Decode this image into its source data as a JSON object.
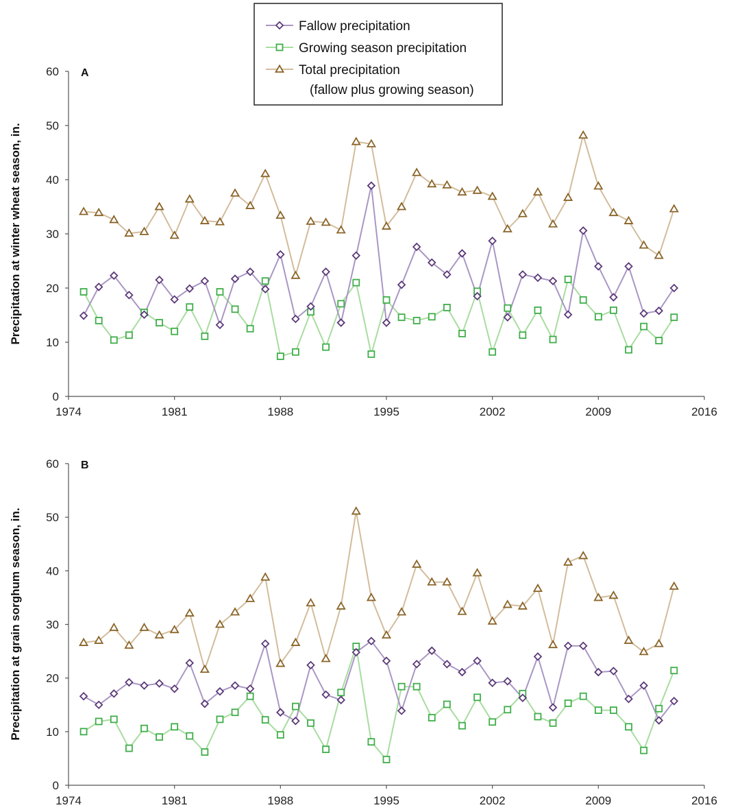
{
  "legend": {
    "entries": [
      {
        "label": "Fallow precipitation",
        "marker": "diamond",
        "line_color": "#a996c4",
        "marker_color": "#5b3978"
      },
      {
        "label": "Growing season precipitation",
        "marker": "square",
        "line_color": "#a8dca0",
        "marker_color": "#3fae49"
      },
      {
        "label": "Total precipitation",
        "marker": "triangle",
        "line_color": "#d2bc9c",
        "marker_color": "#8a6428"
      }
    ],
    "total_note": "(fallow plus growing season)"
  },
  "chart_data": [
    {
      "type": "line",
      "panel_label": "A",
      "ylabel": "Precipitation at winter wheat season, in.",
      "xlabel": "",
      "xlim": [
        1974,
        2016
      ],
      "ylim": [
        0,
        60
      ],
      "x_ticks": [
        "1974",
        "1981",
        "1988",
        "1995",
        "2002",
        "2009",
        "2016"
      ],
      "y_ticks": [
        "0",
        "10",
        "20",
        "30",
        "40",
        "50",
        "60"
      ],
      "grid": false,
      "legend_position": "top-center",
      "x": [
        1975,
        1976,
        1977,
        1978,
        1979,
        1980,
        1981,
        1982,
        1983,
        1984,
        1985,
        1986,
        1987,
        1988,
        1989,
        1990,
        1991,
        1992,
        1993,
        1994,
        1995,
        1996,
        1997,
        1998,
        1999,
        2000,
        2001,
        2002,
        2003,
        2004,
        2005,
        2006,
        2007,
        2008,
        2009,
        2010,
        2011,
        2012,
        2013,
        2014
      ],
      "series": [
        {
          "name": "Fallow precipitation",
          "values": [
            14.9,
            20.2,
            22.3,
            18.7,
            15.1,
            21.5,
            17.9,
            19.9,
            21.3,
            13.2,
            21.7,
            23.0,
            19.8,
            26.2,
            14.3,
            16.6,
            23.0,
            13.6,
            26.0,
            38.9,
            13.6,
            20.6,
            27.6,
            24.7,
            22.5,
            26.4,
            18.5,
            28.7,
            14.6,
            22.5,
            21.9,
            21.3,
            15.1,
            30.6,
            24.0,
            18.3,
            24.0,
            15.3,
            15.8,
            20.0
          ]
        },
        {
          "name": "Growing season precipitation",
          "values": [
            19.3,
            14.0,
            10.4,
            11.3,
            15.5,
            13.6,
            12.0,
            16.5,
            11.1,
            19.3,
            16.1,
            12.5,
            21.3,
            7.4,
            8.2,
            15.6,
            9.1,
            17.1,
            21.0,
            7.8,
            17.8,
            14.6,
            14.0,
            14.7,
            16.4,
            11.6,
            19.4,
            8.2,
            16.3,
            11.3,
            15.9,
            10.5,
            21.6,
            17.8,
            14.7,
            15.9,
            8.6,
            12.9,
            10.3,
            14.6
          ]
        },
        {
          "name": "Total precipitation",
          "values": [
            34.1,
            33.9,
            32.6,
            30.1,
            30.4,
            35.0,
            29.7,
            36.4,
            32.4,
            32.2,
            37.5,
            35.2,
            41.1,
            33.4,
            22.3,
            32.3,
            32.1,
            30.7,
            47.0,
            46.6,
            31.4,
            35.0,
            41.3,
            39.2,
            39.0,
            37.7,
            38.0,
            36.9,
            30.9,
            33.7,
            37.7,
            31.8,
            36.7,
            48.2,
            38.8,
            33.9,
            32.4,
            27.9,
            26.0,
            34.6
          ]
        }
      ]
    },
    {
      "type": "line",
      "panel_label": "B",
      "ylabel": "Precipitation at grain sorghum season, in.",
      "xlabel": "",
      "xlim": [
        1974,
        2016
      ],
      "ylim": [
        0,
        60
      ],
      "x_ticks": [
        "1974",
        "1981",
        "1988",
        "1995",
        "2002",
        "2009",
        "2016"
      ],
      "y_ticks": [
        "0",
        "10",
        "20",
        "30",
        "40",
        "50",
        "60"
      ],
      "grid": false,
      "x": [
        1975,
        1976,
        1977,
        1978,
        1979,
        1980,
        1981,
        1982,
        1983,
        1984,
        1985,
        1986,
        1987,
        1988,
        1989,
        1990,
        1991,
        1992,
        1993,
        1994,
        1995,
        1996,
        1997,
        1998,
        1999,
        2000,
        2001,
        2002,
        2003,
        2004,
        2005,
        2006,
        2007,
        2008,
        2009,
        2010,
        2011,
        2012,
        2013,
        2014
      ],
      "series": [
        {
          "name": "Fallow precipitation",
          "values": [
            16.6,
            15.0,
            17.1,
            19.2,
            18.6,
            19.0,
            18.0,
            22.8,
            15.2,
            17.5,
            18.6,
            18.0,
            26.4,
            13.6,
            12.0,
            22.4,
            16.9,
            15.9,
            24.8,
            26.9,
            23.2,
            13.9,
            22.6,
            25.1,
            22.6,
            21.1,
            23.2,
            19.1,
            19.4,
            16.3,
            24.0,
            14.5,
            26.0,
            26.0,
            21.1,
            21.3,
            16.1,
            18.6,
            12.1,
            15.7
          ]
        },
        {
          "name": "Growing season precipitation",
          "values": [
            10.0,
            11.9,
            12.3,
            6.9,
            10.6,
            9.0,
            10.9,
            9.2,
            6.2,
            12.3,
            13.6,
            16.6,
            12.2,
            9.4,
            14.7,
            11.6,
            6.7,
            17.3,
            25.9,
            8.1,
            4.8,
            18.4,
            18.4,
            12.6,
            15.1,
            11.1,
            16.4,
            11.8,
            14.1,
            17.1,
            12.8,
            11.6,
            15.3,
            16.6,
            14.0,
            14.0,
            10.9,
            6.5,
            14.3,
            21.4
          ]
        },
        {
          "name": "Total precipitation",
          "values": [
            26.6,
            27.0,
            29.4,
            26.1,
            29.4,
            28.0,
            29.0,
            32.1,
            21.6,
            30.0,
            32.3,
            34.8,
            38.8,
            22.7,
            26.6,
            34.0,
            23.6,
            33.4,
            51.1,
            35.0,
            28.0,
            32.3,
            41.2,
            37.9,
            37.9,
            32.4,
            39.6,
            30.6,
            33.7,
            33.4,
            36.7,
            26.2,
            41.6,
            42.8,
            35.0,
            35.4,
            27.0,
            24.9,
            26.4,
            37.1
          ]
        }
      ]
    }
  ]
}
